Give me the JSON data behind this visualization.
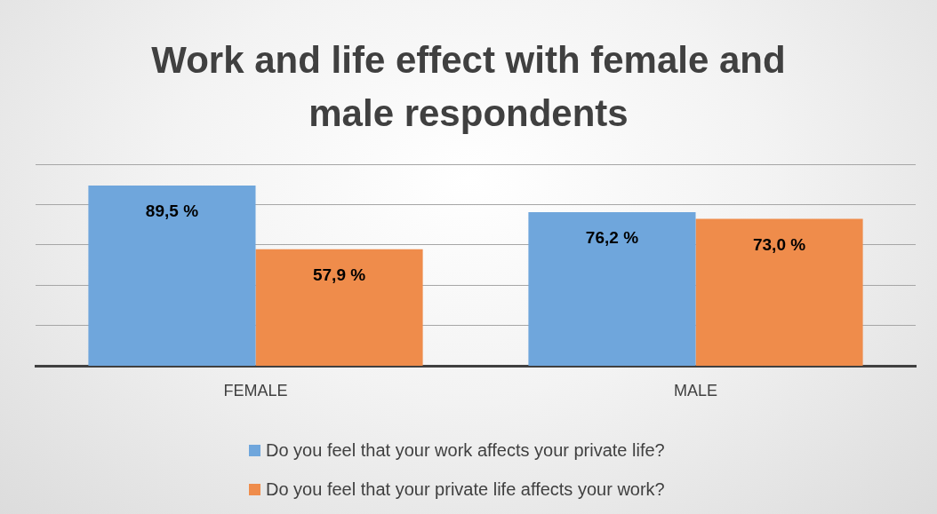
{
  "chart_data": {
    "type": "bar",
    "title": "Work and life effect with female and male respondents",
    "categories": [
      "FEMALE",
      "MALE"
    ],
    "series": [
      {
        "name": "Do you feel that your work affects your private life?",
        "color": "#6fa6dc",
        "values": [
          89.5,
          76.2
        ],
        "value_labels": [
          "89,5 %",
          "76,2 %"
        ]
      },
      {
        "name": "Do you feel that your private life affects your work?",
        "color": "#ef8c4b",
        "values": [
          57.9,
          73.0
        ],
        "value_labels": [
          "57,9 %",
          "73,0 %"
        ]
      }
    ],
    "ylim": [
      0,
      100
    ],
    "yticks": [
      {
        "value": 0,
        "label": null
      },
      {
        "value": 20,
        "label": null
      },
      {
        "value": 40,
        "label": null
      },
      {
        "value": 60,
        "label": null
      },
      {
        "value": 80,
        "label": null
      },
      {
        "value": 100,
        "label": null
      }
    ],
    "grid": "y",
    "tick_labels": "x",
    "legend": "bottom"
  }
}
